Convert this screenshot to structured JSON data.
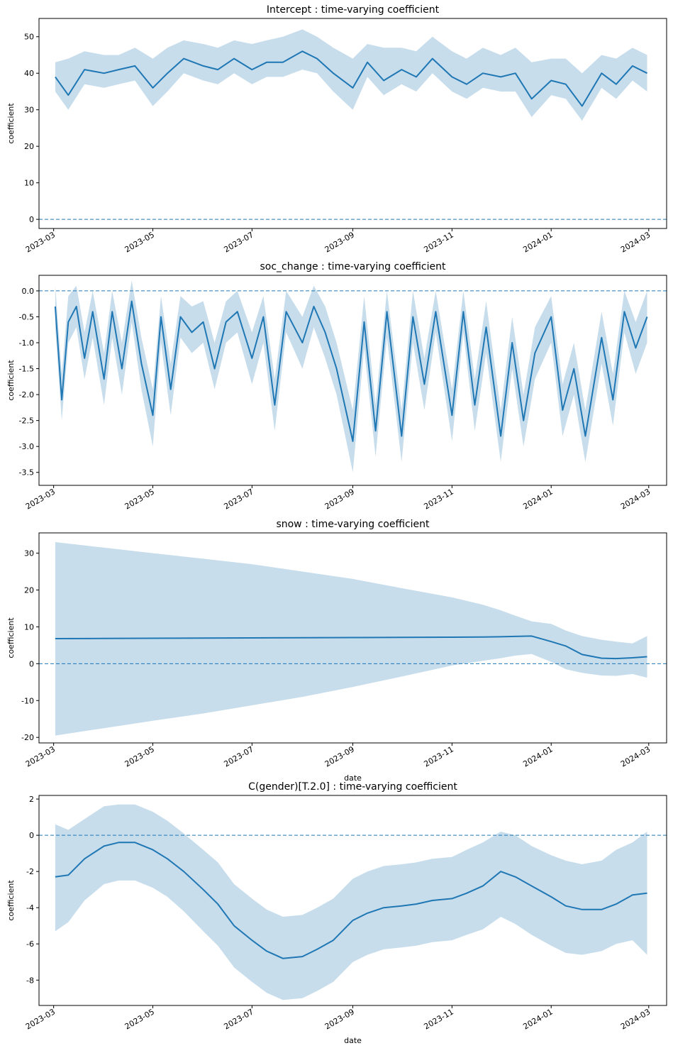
{
  "chart_data": [
    {
      "type": "line",
      "title": "Intercept : time-varying coefficient",
      "xlabel": "",
      "ylabel": "coefficient",
      "ylim": [
        -2.5,
        55
      ],
      "yticks": [
        0,
        10,
        20,
        30,
        40,
        50
      ],
      "reference_line": 0,
      "x": [
        "2023-03-02",
        "2023-03-10",
        "2023-03-20",
        "2023-04-01",
        "2023-04-10",
        "2023-04-20",
        "2023-05-01",
        "2023-05-10",
        "2023-05-20",
        "2023-06-01",
        "2023-06-10",
        "2023-06-20",
        "2023-07-01",
        "2023-07-10",
        "2023-07-20",
        "2023-08-01",
        "2023-08-10",
        "2023-08-20",
        "2023-09-01",
        "2023-09-10",
        "2023-09-20",
        "2023-10-01",
        "2023-10-10",
        "2023-10-20",
        "2023-11-01",
        "2023-11-10",
        "2023-11-20",
        "2023-12-01",
        "2023-12-10",
        "2023-12-20",
        "2024-01-01",
        "2024-01-10",
        "2024-01-20",
        "2024-02-01",
        "2024-02-10",
        "2024-02-20",
        "2024-02-29"
      ],
      "series": [
        {
          "values": [
            39,
            34,
            41,
            40,
            41,
            42,
            36,
            40,
            44,
            42,
            41,
            44,
            41,
            43,
            43,
            46,
            44,
            40,
            36,
            43,
            38,
            41,
            39,
            44,
            39,
            37,
            40,
            39,
            40,
            33,
            38,
            37,
            31,
            40,
            37,
            42,
            40
          ],
          "lower": [
            35,
            30,
            37,
            36,
            37,
            38,
            31,
            35,
            40,
            38,
            37,
            40,
            37,
            39,
            39,
            41,
            40,
            35,
            30,
            39,
            34,
            37,
            35,
            40,
            35,
            33,
            36,
            35,
            35,
            28,
            34,
            33,
            27,
            36,
            33,
            38,
            35
          ],
          "upper": [
            43,
            44,
            46,
            45,
            45,
            47,
            44,
            47,
            49,
            48,
            47,
            49,
            48,
            49,
            50,
            52,
            50,
            47,
            44,
            48,
            47,
            47,
            46,
            50,
            46,
            44,
            47,
            45,
            47,
            43,
            44,
            44,
            40,
            45,
            44,
            47,
            45
          ]
        }
      ]
    },
    {
      "type": "line",
      "title": "soc_change : time-varying coefficient",
      "xlabel": "",
      "ylabel": "coefficient",
      "ylim": [
        -3.75,
        0.3
      ],
      "yticks": [
        0.0,
        -0.5,
        -1.0,
        -1.5,
        -2.0,
        -2.5,
        -3.0,
        -3.5
      ],
      "reference_line": 0,
      "x": [
        "2023-03-02",
        "2023-03-06",
        "2023-03-10",
        "2023-03-15",
        "2023-03-20",
        "2023-03-25",
        "2023-04-01",
        "2023-04-06",
        "2023-04-12",
        "2023-04-18",
        "2023-04-24",
        "2023-05-01",
        "2023-05-06",
        "2023-05-12",
        "2023-05-18",
        "2023-05-25",
        "2023-06-01",
        "2023-06-08",
        "2023-06-15",
        "2023-06-22",
        "2023-07-01",
        "2023-07-08",
        "2023-07-15",
        "2023-07-22",
        "2023-08-01",
        "2023-08-08",
        "2023-08-15",
        "2023-08-22",
        "2023-09-01",
        "2023-09-08",
        "2023-09-15",
        "2023-09-22",
        "2023-10-01",
        "2023-10-08",
        "2023-10-15",
        "2023-10-22",
        "2023-11-01",
        "2023-11-08",
        "2023-11-15",
        "2023-11-22",
        "2023-12-01",
        "2023-12-08",
        "2023-12-15",
        "2023-12-22",
        "2024-01-01",
        "2024-01-08",
        "2024-01-15",
        "2024-01-22",
        "2024-02-01",
        "2024-02-08",
        "2024-02-15",
        "2024-02-22",
        "2024-02-29"
      ],
      "series": [
        {
          "values": [
            -0.3,
            -2.1,
            -0.6,
            -0.3,
            -1.3,
            -0.4,
            -1.7,
            -0.4,
            -1.5,
            -0.2,
            -1.4,
            -2.4,
            -0.5,
            -1.9,
            -0.5,
            -0.8,
            -0.6,
            -1.5,
            -0.6,
            -0.4,
            -1.3,
            -0.5,
            -2.2,
            -0.4,
            -1.0,
            -0.3,
            -0.8,
            -1.5,
            -2.9,
            -0.6,
            -2.7,
            -0.4,
            -2.8,
            -0.5,
            -1.8,
            -0.4,
            -2.4,
            -0.4,
            -2.2,
            -0.7,
            -2.8,
            -1.0,
            -2.5,
            -1.2,
            -0.5,
            -2.3,
            -1.5,
            -2.8,
            -0.9,
            -2.1,
            -0.4,
            -1.1,
            -0.5
          ],
          "lower": [
            -0.7,
            -2.5,
            -1.0,
            -0.7,
            -1.7,
            -0.9,
            -2.2,
            -0.9,
            -2.0,
            -0.6,
            -1.9,
            -3.0,
            -1.0,
            -2.4,
            -0.9,
            -1.2,
            -1.0,
            -1.9,
            -1.0,
            -0.8,
            -1.8,
            -1.0,
            -2.7,
            -0.8,
            -1.5,
            -0.7,
            -1.3,
            -2.0,
            -3.5,
            -1.1,
            -3.2,
            -0.9,
            -3.3,
            -1.0,
            -2.3,
            -0.8,
            -2.9,
            -0.8,
            -2.7,
            -1.2,
            -3.3,
            -1.5,
            -3.0,
            -1.7,
            -1.0,
            -2.8,
            -2.0,
            -3.3,
            -1.4,
            -2.6,
            -0.8,
            -1.6,
            -1.0
          ],
          "upper": [
            0.1,
            -1.6,
            -0.1,
            0.1,
            -0.8,
            0.0,
            -1.2,
            0.0,
            -1.0,
            0.2,
            -0.9,
            -1.9,
            -0.1,
            -1.4,
            -0.1,
            -0.3,
            -0.2,
            -1.0,
            -0.2,
            0.0,
            -0.8,
            -0.1,
            -1.7,
            0.0,
            -0.5,
            0.1,
            -0.3,
            -1.0,
            -2.3,
            -0.1,
            -2.2,
            0.0,
            -2.3,
            0.0,
            -1.3,
            0.0,
            -1.9,
            0.0,
            -1.7,
            -0.2,
            -2.3,
            -0.5,
            -2.0,
            -0.7,
            -0.1,
            -1.8,
            -1.0,
            -2.3,
            -0.4,
            -1.6,
            0.0,
            -0.6,
            0.0
          ]
        }
      ]
    },
    {
      "type": "line",
      "title": "snow : time-varying coefficient",
      "xlabel": "date",
      "ylabel": "coefficient",
      "ylim": [
        -21.5,
        35.5
      ],
      "yticks": [
        30,
        20,
        10,
        0,
        -10,
        -20
      ],
      "reference_line": 0,
      "x": [
        "2023-03-02",
        "2023-04-01",
        "2023-05-01",
        "2023-06-01",
        "2023-07-01",
        "2023-08-01",
        "2023-09-01",
        "2023-10-01",
        "2023-11-01",
        "2023-11-20",
        "2023-12-01",
        "2023-12-10",
        "2023-12-20",
        "2024-01-01",
        "2024-01-10",
        "2024-01-20",
        "2024-02-01",
        "2024-02-10",
        "2024-02-20",
        "2024-02-29"
      ],
      "series": [
        {
          "values": [
            6.8,
            6.85,
            6.9,
            6.95,
            7.0,
            7.05,
            7.1,
            7.15,
            7.2,
            7.25,
            7.3,
            7.4,
            7.5,
            6.0,
            4.8,
            2.5,
            1.5,
            1.4,
            1.6,
            1.9
          ],
          "lower": [
            -19.5,
            -17.5,
            -15.5,
            -13.5,
            -11.3,
            -9.0,
            -6.3,
            -3.5,
            -0.5,
            0.8,
            1.5,
            2.2,
            2.6,
            0.5,
            -1.5,
            -2.5,
            -3.2,
            -3.3,
            -2.8,
            -3.8
          ],
          "upper": [
            33,
            31.5,
            30,
            28.5,
            27,
            25,
            23,
            20.5,
            18,
            16,
            14.5,
            13,
            11.5,
            10.8,
            9,
            7.5,
            6.5,
            6.0,
            5.5,
            7.5
          ]
        }
      ]
    },
    {
      "type": "line",
      "title": "C(gender)[T.2.0] : time-varying coefficient",
      "xlabel": "date",
      "ylabel": "coefficient",
      "ylim": [
        -9.4,
        2.2
      ],
      "yticks": [
        2,
        0,
        -2,
        -4,
        -6,
        -8
      ],
      "reference_line": 0,
      "x": [
        "2023-03-02",
        "2023-03-10",
        "2023-03-20",
        "2023-04-01",
        "2023-04-10",
        "2023-04-20",
        "2023-05-01",
        "2023-05-10",
        "2023-05-20",
        "2023-06-01",
        "2023-06-10",
        "2023-06-20",
        "2023-07-01",
        "2023-07-10",
        "2023-07-20",
        "2023-08-01",
        "2023-08-10",
        "2023-08-20",
        "2023-09-01",
        "2023-09-10",
        "2023-09-20",
        "2023-10-01",
        "2023-10-10",
        "2023-10-20",
        "2023-11-01",
        "2023-11-10",
        "2023-11-20",
        "2023-12-01",
        "2023-12-10",
        "2023-12-20",
        "2024-01-01",
        "2024-01-10",
        "2024-01-20",
        "2024-02-01",
        "2024-02-10",
        "2024-02-20",
        "2024-02-29"
      ],
      "series": [
        {
          "values": [
            -2.3,
            -2.2,
            -1.3,
            -0.6,
            -0.4,
            -0.4,
            -0.8,
            -1.3,
            -2.0,
            -3.0,
            -3.8,
            -5.0,
            -5.8,
            -6.4,
            -6.8,
            -6.7,
            -6.3,
            -5.8,
            -4.7,
            -4.3,
            -4.0,
            -3.9,
            -3.8,
            -3.6,
            -3.5,
            -3.2,
            -2.8,
            -2.0,
            -2.3,
            -2.8,
            -3.4,
            -3.9,
            -4.1,
            -4.1,
            -3.8,
            -3.3,
            -3.2
          ],
          "lower": [
            -5.3,
            -4.8,
            -3.6,
            -2.7,
            -2.5,
            -2.5,
            -2.9,
            -3.4,
            -4.2,
            -5.3,
            -6.1,
            -7.3,
            -8.1,
            -8.7,
            -9.1,
            -9.0,
            -8.6,
            -8.1,
            -7.0,
            -6.6,
            -6.3,
            -6.2,
            -6.1,
            -5.9,
            -5.8,
            -5.5,
            -5.2,
            -4.5,
            -4.9,
            -5.5,
            -6.1,
            -6.5,
            -6.6,
            -6.4,
            -6.0,
            -5.8,
            -6.6
          ],
          "upper": [
            0.6,
            0.3,
            0.9,
            1.6,
            1.7,
            1.7,
            1.3,
            0.8,
            0.1,
            -0.8,
            -1.5,
            -2.7,
            -3.5,
            -4.1,
            -4.5,
            -4.4,
            -4.0,
            -3.5,
            -2.4,
            -2.0,
            -1.7,
            -1.6,
            -1.5,
            -1.3,
            -1.2,
            -0.8,
            -0.4,
            0.2,
            0.0,
            -0.6,
            -1.1,
            -1.4,
            -1.6,
            -1.4,
            -0.8,
            -0.4,
            0.2
          ]
        }
      ]
    }
  ],
  "x_axis": {
    "min": "2023-02-20",
    "max": "2024-03-12",
    "ticks": [
      "2023-03-01",
      "2023-05-01",
      "2023-07-01",
      "2023-09-01",
      "2023-11-01",
      "2024-01-01",
      "2024-03-01"
    ],
    "tick_labels": [
      "2023-03",
      "2023-05",
      "2023-07",
      "2023-09",
      "2023-11",
      "2024-01",
      "2024-03"
    ]
  }
}
